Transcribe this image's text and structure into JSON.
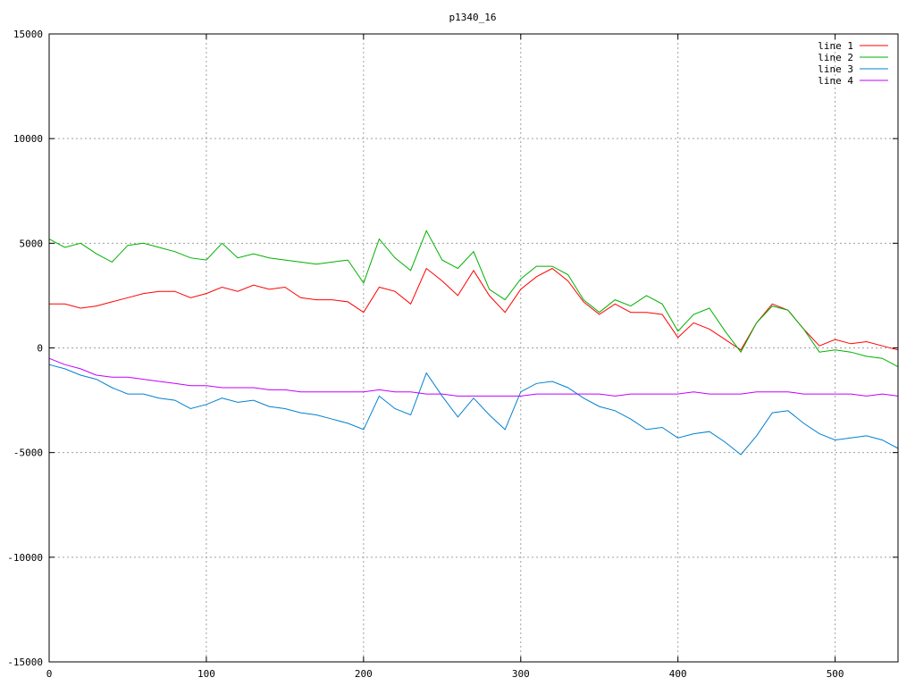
{
  "chart_data": {
    "type": "line",
    "title": "p1340_16",
    "xlabel": "",
    "ylabel": "",
    "xlim": [
      0,
      540
    ],
    "ylim": [
      -15000,
      15000
    ],
    "x_ticks": [
      0,
      100,
      200,
      300,
      400,
      500
    ],
    "y_ticks": [
      -15000,
      -10000,
      -5000,
      0,
      5000,
      10000,
      15000
    ],
    "grid": true,
    "legend_position": "top-right",
    "x": [
      0,
      10,
      20,
      30,
      40,
      50,
      60,
      70,
      80,
      90,
      100,
      110,
      120,
      130,
      140,
      150,
      160,
      170,
      180,
      190,
      200,
      210,
      220,
      230,
      240,
      250,
      260,
      270,
      280,
      290,
      300,
      310,
      320,
      330,
      340,
      350,
      360,
      370,
      380,
      390,
      400,
      410,
      420,
      430,
      440,
      450,
      460,
      470,
      480,
      490,
      500,
      510,
      520,
      530,
      540
    ],
    "series": [
      {
        "name": "line 1",
        "color": "#ff0000",
        "values": [
          2100,
          2100,
          1900,
          2000,
          2200,
          2400,
          2600,
          2700,
          2700,
          2400,
          2600,
          2900,
          2700,
          3000,
          2800,
          2900,
          2400,
          2300,
          2300,
          2200,
          1700,
          2900,
          2700,
          2100,
          3800,
          3200,
          2500,
          3700,
          2500,
          1700,
          2800,
          3400,
          3800,
          3200,
          2200,
          1600,
          2100,
          1700,
          1700,
          1600,
          500,
          1200,
          900,
          400,
          -100,
          1200,
          2100,
          1800,
          900,
          100,
          400,
          200,
          300,
          100,
          -100
        ]
      },
      {
        "name": "line 2",
        "color": "#00b000",
        "values": [
          5200,
          4800,
          5000,
          4500,
          4100,
          4900,
          5000,
          4800,
          4600,
          4300,
          4200,
          5000,
          4300,
          4500,
          4300,
          4200,
          4100,
          4000,
          4100,
          4200,
          3100,
          5200,
          4300,
          3700,
          5600,
          4200,
          3800,
          4600,
          2800,
          2300,
          3300,
          3900,
          3900,
          3500,
          2300,
          1700,
          2300,
          2000,
          2500,
          2100,
          800,
          1600,
          1900,
          800,
          -200,
          1200,
          2000,
          1800,
          900,
          -200,
          -100,
          -200,
          -400,
          -500,
          -900
        ]
      },
      {
        "name": "line 3",
        "color": "#0080d0",
        "values": [
          -800,
          -1000,
          -1300,
          -1500,
          -1900,
          -2200,
          -2200,
          -2400,
          -2500,
          -2900,
          -2700,
          -2400,
          -2600,
          -2500,
          -2800,
          -2900,
          -3100,
          -3200,
          -3400,
          -3600,
          -3900,
          -2300,
          -2900,
          -3200,
          -1200,
          -2300,
          -3300,
          -2400,
          -3200,
          -3900,
          -2100,
          -1700,
          -1600,
          -1900,
          -2400,
          -2800,
          -3000,
          -3400,
          -3900,
          -3800,
          -4300,
          -4100,
          -4000,
          -4500,
          -5100,
          -4200,
          -3100,
          -3000,
          -3600,
          -4100,
          -4400,
          -4300,
          -4200,
          -4400,
          -4800
        ]
      },
      {
        "name": "line 4",
        "color": "#c000ff",
        "values": [
          -500,
          -800,
          -1000,
          -1300,
          -1400,
          -1400,
          -1500,
          -1600,
          -1700,
          -1800,
          -1800,
          -1900,
          -1900,
          -1900,
          -2000,
          -2000,
          -2100,
          -2100,
          -2100,
          -2100,
          -2100,
          -2000,
          -2100,
          -2100,
          -2200,
          -2200,
          -2300,
          -2300,
          -2300,
          -2300,
          -2300,
          -2200,
          -2200,
          -2200,
          -2200,
          -2200,
          -2300,
          -2200,
          -2200,
          -2200,
          -2200,
          -2100,
          -2200,
          -2200,
          -2200,
          -2100,
          -2100,
          -2100,
          -2200,
          -2200,
          -2200,
          -2200,
          -2300,
          -2200,
          -2300
        ]
      }
    ]
  }
}
